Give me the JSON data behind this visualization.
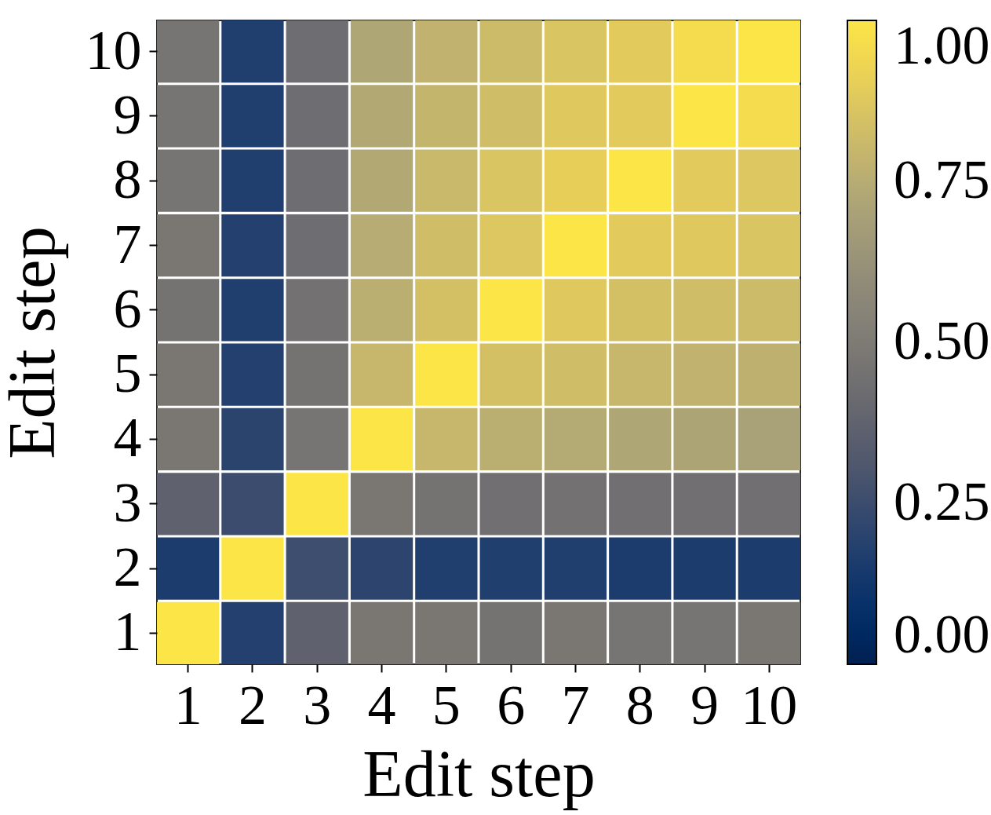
{
  "chart_data": {
    "type": "heatmap",
    "xlabel": "Edit step",
    "ylabel": "Edit step",
    "categories": [
      "1",
      "2",
      "3",
      "4",
      "5",
      "6",
      "7",
      "8",
      "9",
      "10"
    ],
    "y_categories": [
      "10",
      "9",
      "8",
      "7",
      "6",
      "5",
      "4",
      "3",
      "2",
      "1"
    ],
    "cells": [
      [
        0.47,
        0.17,
        0.43,
        0.72,
        0.78,
        0.82,
        0.86,
        0.89,
        0.96,
        1.0
      ],
      [
        0.47,
        0.17,
        0.43,
        0.73,
        0.79,
        0.83,
        0.88,
        0.89,
        1.0,
        0.96
      ],
      [
        0.47,
        0.17,
        0.43,
        0.73,
        0.81,
        0.86,
        0.9,
        1.0,
        0.89,
        0.87
      ],
      [
        0.48,
        0.18,
        0.43,
        0.75,
        0.83,
        0.87,
        1.0,
        0.89,
        0.88,
        0.86
      ],
      [
        0.46,
        0.17,
        0.45,
        0.76,
        0.84,
        1.0,
        0.88,
        0.84,
        0.83,
        0.82
      ],
      [
        0.48,
        0.18,
        0.46,
        0.8,
        1.0,
        0.84,
        0.83,
        0.8,
        0.78,
        0.77
      ],
      [
        0.48,
        0.2,
        0.47,
        1.0,
        0.8,
        0.76,
        0.74,
        0.72,
        0.71,
        0.7
      ],
      [
        0.37,
        0.25,
        1.0,
        0.48,
        0.46,
        0.44,
        0.45,
        0.44,
        0.44,
        0.44
      ],
      [
        0.16,
        1.0,
        0.26,
        0.21,
        0.17,
        0.17,
        0.17,
        0.16,
        0.16,
        0.16
      ],
      [
        1.0,
        0.18,
        0.37,
        0.48,
        0.48,
        0.46,
        0.48,
        0.47,
        0.47,
        0.48
      ]
    ],
    "clim": [
      0,
      1
    ],
    "cticks": [
      {
        "value": 0,
        "label": "0.00"
      },
      {
        "value": 0.25,
        "label": "0.25"
      },
      {
        "value": 0.5,
        "label": "0.50"
      },
      {
        "value": 0.75,
        "label": "0.75"
      },
      {
        "value": 1,
        "label": "1.00"
      }
    ]
  }
}
